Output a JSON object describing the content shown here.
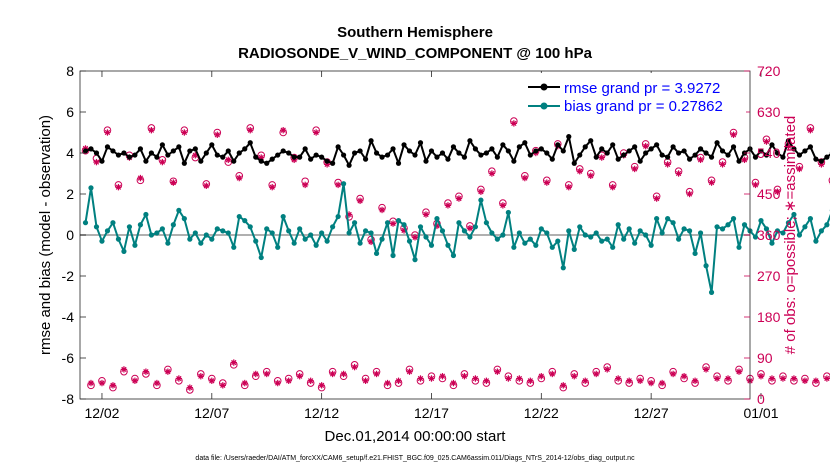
{
  "chart_data": {
    "type": "line",
    "title": "Southern Hemisphere",
    "subtitle": "RADIOSONDE_V_WIND_COMPONENT @ 100 hPa",
    "xlabel": "Dec.01,2014 00:00:00 start",
    "ylabel_left": "rmse and bias (model - observation)",
    "ylabel_right": "# of obs: o=possible; ∗=assimilated",
    "footnote": "data file: /Users/raeder/DAI/ATM_forcXX/CAM6_setup/f.e21.FHIST_BGC.f09_025.CAM6assim.011/Diags_NTrS_2014-12/obs_diag_output.nc",
    "xlim": [
      0,
      30.5
    ],
    "ylim_left": [
      -8,
      8
    ],
    "ylim_right": [
      0,
      720
    ],
    "x_ticks": [
      {
        "x": 1,
        "label": "12/02"
      },
      {
        "x": 6,
        "label": "12/07"
      },
      {
        "x": 11,
        "label": "12/12"
      },
      {
        "x": 16,
        "label": "12/17"
      },
      {
        "x": 21,
        "label": "12/22"
      },
      {
        "x": 26,
        "label": "12/27"
      },
      {
        "x": 31,
        "label": "01/01"
      }
    ],
    "y_left_ticks": [
      -8,
      -6,
      -4,
      -2,
      0,
      2,
      4,
      6,
      8
    ],
    "y_right_ticks": [
      0,
      90,
      180,
      270,
      360,
      450,
      540,
      630,
      720
    ],
    "colors": {
      "rmse": "#000000",
      "bias": "#008080",
      "obs": "#cc0055",
      "zero": "#b0b0b0"
    },
    "series": [
      {
        "name": "rmse grand pr = 3.9272",
        "axis": "left",
        "color": "#000000",
        "t0": 0.25,
        "dt": 0.25,
        "values": [
          4.1,
          4.2,
          4.0,
          3.6,
          4.3,
          4.1,
          3.9,
          4.0,
          3.8,
          3.9,
          4.2,
          3.6,
          4.0,
          3.8,
          4.4,
          3.9,
          4.1,
          4.3,
          3.5,
          4.1,
          4.2,
          3.6,
          4.0,
          4.4,
          3.9,
          3.8,
          4.1,
          3.6,
          4.0,
          4.2,
          4.5,
          3.8,
          3.6,
          3.5,
          3.7,
          3.9,
          4.1,
          4.0,
          3.8,
          3.8,
          4.2,
          3.7,
          3.9,
          3.8,
          3.6,
          3.5,
          4.3,
          3.9,
          3.4,
          4.0,
          4.1,
          3.7,
          4.6,
          4.0,
          3.8,
          3.9,
          4.2,
          3.5,
          4.4,
          4.1,
          3.9,
          4.5,
          3.6,
          4.1,
          3.8,
          4.0,
          3.7,
          4.3,
          4.0,
          3.8,
          4.6,
          4.2,
          3.9,
          4.0,
          4.2,
          3.8,
          4.4,
          4.1,
          3.6,
          4.3,
          4.5,
          3.9,
          4.1,
          4.2,
          4.0,
          3.7,
          4.4,
          4.1,
          4.8,
          3.5,
          3.9,
          4.3,
          4.6,
          3.8,
          4.2,
          4.0,
          4.4,
          3.7,
          3.9,
          4.1,
          4.3,
          3.6,
          4.0,
          4.2,
          4.4,
          3.9,
          3.8,
          4.3,
          4.0,
          4.1,
          3.7,
          3.9,
          4.2,
          4.0,
          3.8,
          4.5,
          4.1,
          3.9,
          4.3,
          3.6,
          4.0,
          4.2,
          3.8,
          4.1,
          3.9,
          4.4,
          4.0,
          3.8,
          4.6,
          4.2,
          3.9,
          4.1,
          4.3,
          3.7,
          3.6,
          3.8,
          4.0,
          4.1,
          3.9,
          3.5,
          4.2,
          4.3,
          3.8,
          4.0,
          3.6,
          4.1
        ]
      },
      {
        "name": "bias grand pr = 0.27862",
        "axis": "left",
        "color": "#008080",
        "t0": 0.25,
        "dt": 0.25,
        "values": [
          0.6,
          2.3,
          0.4,
          -0.3,
          0.2,
          0.6,
          -0.2,
          -0.8,
          0.4,
          -0.5,
          0.5,
          1.0,
          0.0,
          0.1,
          0.3,
          -0.4,
          0.5,
          1.2,
          0.8,
          -0.2,
          0.1,
          -0.4,
          0.0,
          -0.2,
          0.3,
          0.2,
          0.1,
          -0.6,
          0.9,
          0.7,
          0.4,
          -0.3,
          -1.1,
          0.3,
          0.1,
          -0.6,
          0.9,
          0.2,
          -0.4,
          0.3,
          -0.2,
          0.0,
          -0.5,
          0.1,
          -0.3,
          0.4,
          0.9,
          2.5,
          0.1,
          0.6,
          -0.4,
          0.2,
          0.1,
          -0.9,
          -0.2,
          0.6,
          -1.0,
          0.7,
          0.5,
          -0.3,
          -1.2,
          0.4,
          -0.1,
          -0.5,
          0.8,
          0.2,
          -0.5,
          -1.0,
          0.6,
          0.2,
          -0.1,
          0.4,
          1.7,
          0.6,
          0.1,
          -0.2,
          0.0,
          1.1,
          -0.6,
          0.1,
          -0.4,
          -0.2,
          -0.5,
          0.3,
          0.1,
          -0.6,
          -0.3,
          -1.6,
          0.2,
          -0.7,
          0.4,
          0.0,
          -0.1,
          0.1,
          -0.3,
          -0.2,
          -0.6,
          0.5,
          -0.2,
          0.3,
          -0.4,
          0.2,
          0.0,
          -0.5,
          0.8,
          0.1,
          0.8,
          0.6,
          -0.2,
          0.3,
          0.2,
          -0.9,
          0.1,
          -1.5,
          -2.8,
          0.4,
          0.3,
          0.5,
          0.8,
          -0.6,
          0.5,
          0.2,
          -0.1,
          0.7,
          0.3,
          -0.4,
          0.2,
          0.1,
          0.6,
          1.0,
          0.0,
          0.4,
          0.8,
          -0.3,
          0.2,
          0.5,
          1.2,
          -0.2,
          -0.6,
          -0.3,
          0.0,
          0.4,
          0.6,
          -0.4,
          0.2,
          -1.3
        ]
      },
      {
        "name": "obs possible",
        "axis": "right",
        "color": "#cc0055",
        "t0": 0.25,
        "dt": 0.25,
        "values": [
          545,
          30,
          528,
          40,
          590,
          25,
          470,
          60,
          535,
          45,
          480,
          55,
          595,
          30,
          525,
          65,
          478,
          40,
          590,
          20,
          530,
          55,
          472,
          45,
          585,
          35,
          520,
          75,
          490,
          30,
          595,
          50,
          535,
          60,
          470,
          40,
          585,
          45,
          530,
          55,
          478,
          35,
          590,
          25,
          520,
          60,
          475,
          50,
          400,
          75,
          440,
          45,
          350,
          60,
          420,
          30,
          390,
          35,
          375,
          65,
          360,
          40,
          410,
          50,
          385,
          45,
          430,
          30,
          445,
          55,
          380,
          40,
          460,
          35,
          500,
          65,
          430,
          50,
          610,
          40,
          490,
          35,
          545,
          45,
          480,
          60,
          560,
          25,
          470,
          55,
          505,
          35,
          495,
          60,
          535,
          70,
          470,
          40,
          540,
          35,
          510,
          45,
          560,
          40,
          445,
          30,
          520,
          60,
          500,
          45,
          455,
          35,
          530,
          70,
          480,
          50,
          520,
          40,
          585,
          65,
          530,
          45,
          475,
          55,
          570,
          40,
          460,
          50,
          560,
          40,
          510,
          45,
          595,
          35,
          520,
          50,
          480,
          70,
          460,
          55,
          470,
          40,
          400,
          35,
          385,
          10,
          360,
          20
        ]
      },
      {
        "name": "obs assimilated",
        "axis": "right",
        "color": "#cc0055",
        "t0": 0.25,
        "dt": 0.25,
        "values": [
          550,
          35,
          520,
          35,
          585,
          30,
          465,
          65,
          530,
          40,
          485,
          60,
          590,
          35,
          520,
          60,
          475,
          45,
          585,
          25,
          535,
          50,
          468,
          40,
          580,
          30,
          525,
          80,
          485,
          35,
          590,
          55,
          530,
          55,
          465,
          35,
          590,
          40,
          525,
          50,
          470,
          40,
          585,
          30,
          515,
          55,
          470,
          55,
          405,
          70,
          435,
          40,
          345,
          55,
          415,
          35,
          385,
          40,
          370,
          60,
          355,
          45,
          405,
          45,
          380,
          50,
          425,
          35,
          440,
          50,
          375,
          45,
          455,
          40,
          495,
          60,
          425,
          45,
          605,
          45,
          485,
          40,
          540,
          50,
          475,
          55,
          555,
          30,
          465,
          50,
          500,
          40,
          490,
          55,
          530,
          65,
          465,
          45,
          535,
          40,
          505,
          40,
          555,
          35,
          440,
          35,
          515,
          55,
          495,
          50,
          450,
          40,
          525,
          65,
          475,
          45,
          515,
          45,
          580,
          60,
          525,
          40,
          470,
          50,
          565,
          45,
          455,
          45,
          555,
          45,
          505,
          40,
          590,
          40,
          515,
          45,
          475,
          65,
          455,
          50,
          465,
          45,
          395,
          40,
          380,
          15,
          355,
          25
        ]
      }
    ],
    "legend": [
      "rmse grand pr = 3.9272",
      "bias grand pr = 0.27862"
    ],
    "legend_location": "top-right"
  }
}
